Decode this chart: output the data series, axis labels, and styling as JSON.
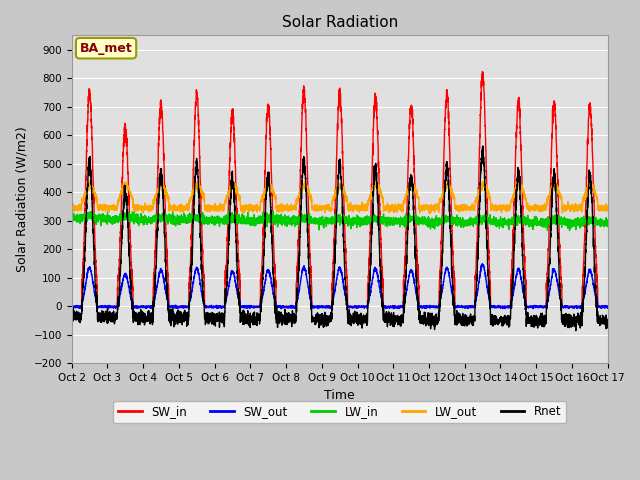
{
  "title": "Solar Radiation",
  "ylabel": "Solar Radiation (W/m2)",
  "xlabel": "Time",
  "ylim": [
    -200,
    950
  ],
  "yticks": [
    -200,
    -100,
    0,
    100,
    200,
    300,
    400,
    500,
    600,
    700,
    800,
    900
  ],
  "xlim": [
    0,
    15
  ],
  "xtick_labels": [
    "Oct 2",
    "Oct 3",
    "Oct 4",
    "Oct 5",
    "Oct 6",
    "Oct 7",
    "Oct 8",
    "Oct 9",
    "Oct 10",
    "Oct 11",
    "Oct 12",
    "Oct 13",
    "Oct 14",
    "Oct 15",
    "Oct 16",
    "Oct 17"
  ],
  "annotation_text": "BA_met",
  "annotation_color": "#8B0000",
  "annotation_bg": "#FFFFCC",
  "annotation_border": "#999900",
  "fig_bg_color": "#C8C8C8",
  "plot_bg": "#E0E0E0",
  "colors": {
    "SW_in": "#FF0000",
    "SW_out": "#0000FF",
    "LW_in": "#00CC00",
    "LW_out": "#FFA500",
    "Rnet": "#000000"
  },
  "n_days": 15,
  "points_per_day": 288,
  "sw_peaks": [
    750,
    630,
    710,
    740,
    680,
    700,
    760,
    750,
    730,
    700,
    745,
    810,
    720,
    710,
    700
  ]
}
